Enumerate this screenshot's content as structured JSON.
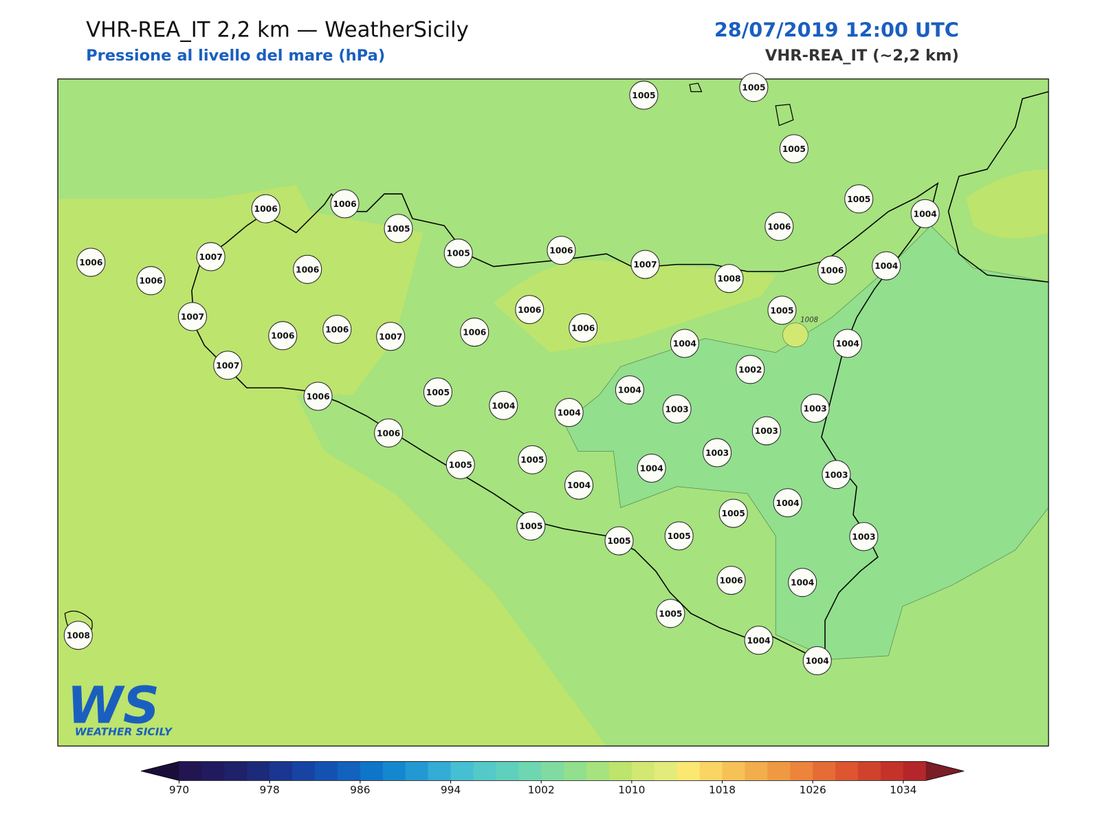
{
  "header": {
    "title": "VHR-REA_IT 2,2 km — WeatherSicily",
    "subtitle": "Pressione al livello del mare (hPa)",
    "datetime": "28/07/2019 12:00 UTC",
    "model": "VHR-REA_IT (~2,2 km)"
  },
  "stations": [
    1005,
    1005,
    1005,
    1005,
    1004,
    1006,
    1006,
    1005,
    1006,
    1007,
    1006,
    1006,
    1005,
    1006,
    1007,
    1006,
    1008,
    1006,
    1004,
    1007,
    1006,
    1006,
    1007,
    1006,
    1006,
    1006,
    1005,
    1004,
    1004,
    1007,
    1002,
    1006,
    1005,
    1004,
    1004,
    1004,
    1003,
    1003,
    1006,
    1003,
    1003,
    1005,
    1005,
    1004,
    1004,
    1003,
    1004,
    1005,
    1005,
    1005,
    1005,
    1003,
    1006,
    1004,
    1005,
    1004,
    1004,
    1008
  ],
  "contour_label": "1008",
  "colorbar": {
    "ticks": [
      970,
      978,
      986,
      994,
      1002,
      1010,
      1018,
      1026,
      1034
    ],
    "under_color": "#1b0d3a",
    "over_color": "#7a1d24",
    "colors": [
      "#231552",
      "#221a5e",
      "#1f2169",
      "#1c2a7a",
      "#1a3690",
      "#1744a3",
      "#1452b2",
      "#1262be",
      "#0f75c8",
      "#1488cf",
      "#2399d3",
      "#33acd6",
      "#45bfd1",
      "#54c9c8",
      "#5ed0bc",
      "#6ed6b0",
      "#80dba0",
      "#92df8e",
      "#a6e27e",
      "#bde46d",
      "#d2e873",
      "#e3eb7a",
      "#fbe873",
      "#fbd564",
      "#f6c258",
      "#f2ad4c",
      "#ef9a42",
      "#ec843b",
      "#e56d35",
      "#dd5630",
      "#cf432d",
      "#c3332a",
      "#b4262a"
    ]
  },
  "logo": {
    "mark": "WS",
    "text": "WEATHER SICILY"
  }
}
